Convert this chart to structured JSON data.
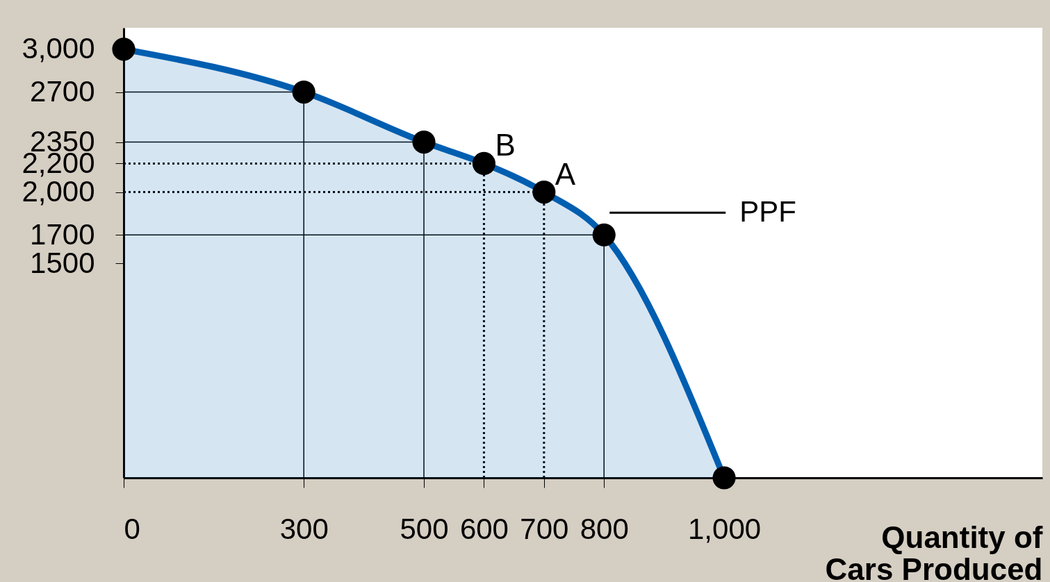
{
  "chart_data": {
    "type": "area",
    "xlabel": "Quantity of Cars Produced",
    "x": [
      0,
      300,
      500,
      600,
      700,
      800,
      1000
    ],
    "series": [
      {
        "name": "PPF",
        "color": "#005eb0",
        "values": [
          3000,
          2700,
          2350,
          2200,
          2000,
          1700,
          0
        ]
      }
    ],
    "xlim": [
      0,
      1530
    ],
    "ylim": [
      0,
      3150
    ],
    "xticks": [
      0,
      300,
      500,
      600,
      700,
      800,
      {
        "value": 1000,
        "label": "1,000"
      }
    ],
    "yticks": [
      1500,
      1700,
      {
        "value": 2000,
        "label": "2,000"
      },
      {
        "value": 2200,
        "label": "2,200"
      },
      2350,
      2700,
      {
        "value": 3000,
        "label": "3,000"
      }
    ],
    "ref_lines": [
      {
        "axis": "x",
        "value": 300,
        "line_style": "solid"
      },
      {
        "axis": "x",
        "value": 500,
        "line_style": "solid"
      },
      {
        "axis": "x",
        "value": 600,
        "line_style": "dotted"
      },
      {
        "axis": "x",
        "value": 700,
        "line_style": "dotted"
      },
      {
        "axis": "x",
        "value": 800,
        "line_style": "solid"
      },
      {
        "axis": "y",
        "value": 2700,
        "line_style": "solid"
      },
      {
        "axis": "y",
        "value": 2350,
        "line_style": "solid"
      },
      {
        "axis": "y",
        "value": 2200,
        "line_style": "dotted"
      },
      {
        "axis": "y",
        "value": 2000,
        "line_style": "dotted"
      },
      {
        "axis": "y",
        "value": 1700,
        "line_style": "solid"
      }
    ],
    "annotations": [
      {
        "text": "B",
        "x": 600,
        "y": 2200
      },
      {
        "text": "A",
        "x": 700,
        "y": 2000
      }
    ],
    "marker": "circle",
    "grid": false,
    "legend": "right"
  }
}
